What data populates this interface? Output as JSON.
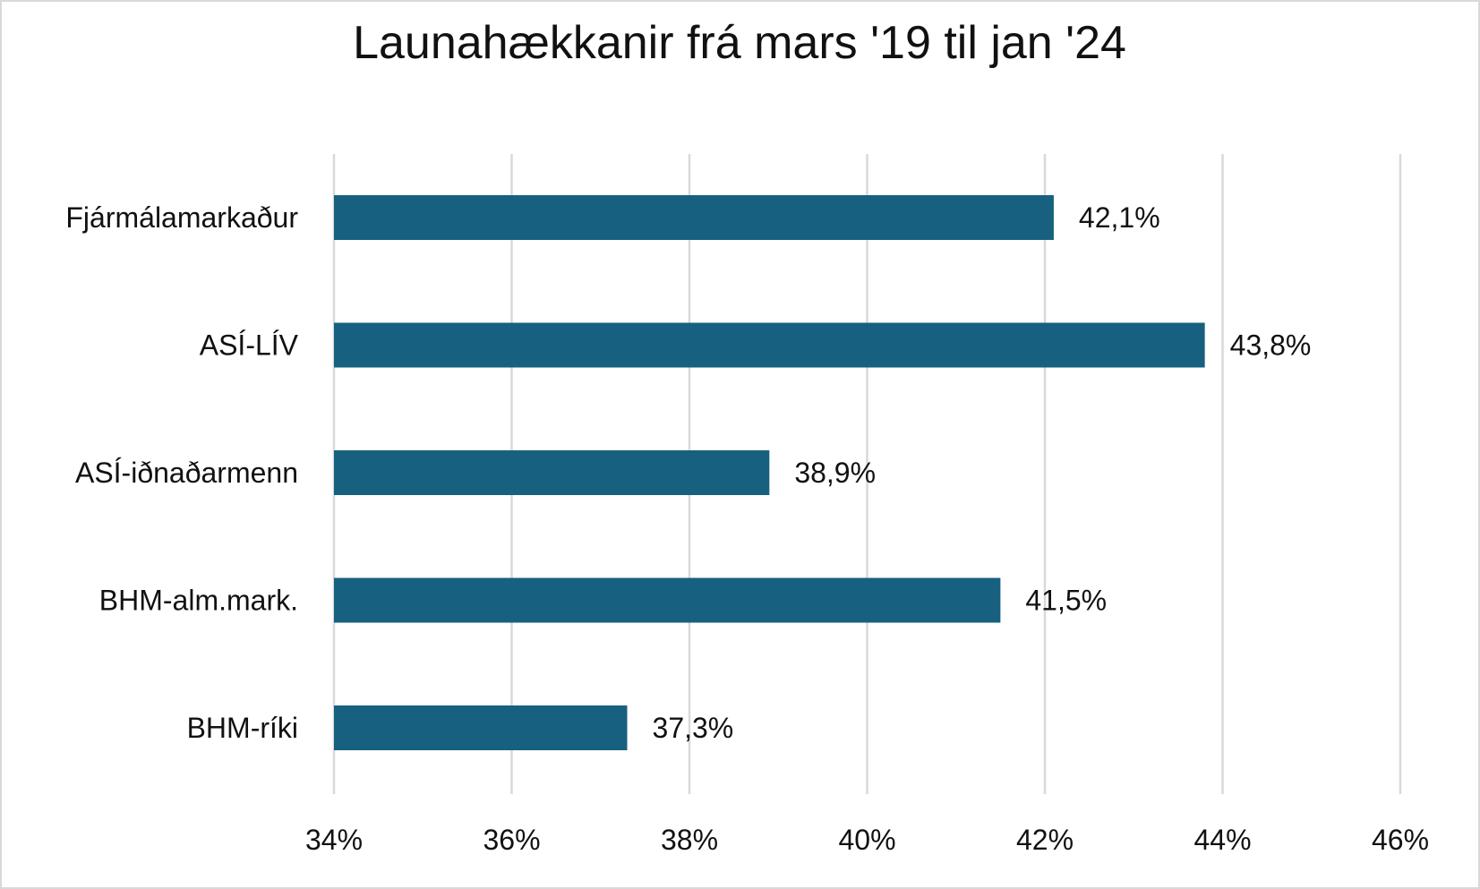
{
  "chart_data": {
    "type": "bar",
    "orientation": "horizontal",
    "title": "Launahækkanir frá mars '19 til jan '24",
    "categories": [
      "Fjármálamarkaður",
      "ASÍ-LÍV",
      "ASÍ-iðnaðarmenn",
      "BHM-alm.mark.",
      "BHM-ríki"
    ],
    "values": [
      42.1,
      43.8,
      38.9,
      41.5,
      37.3
    ],
    "data_labels": [
      "42,1%",
      "43,8%",
      "38,9%",
      "41,5%",
      "37,3%"
    ],
    "xlim": [
      34,
      46
    ],
    "xticks": [
      34,
      36,
      38,
      40,
      42,
      44,
      46
    ],
    "xtick_labels": [
      "34%",
      "36%",
      "38%",
      "40%",
      "42%",
      "44%",
      "46%"
    ],
    "xlabel": "",
    "ylabel": "",
    "grid": "vertical",
    "legend": "none",
    "bar_color": "#17607f",
    "grid_color": "#d9d9d9"
  }
}
